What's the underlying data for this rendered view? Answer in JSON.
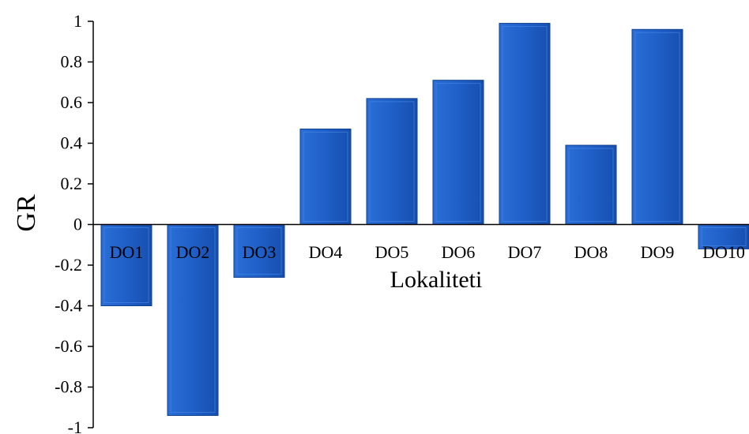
{
  "chart_data": {
    "type": "bar",
    "title": "",
    "xlabel": "Lokaliteti",
    "ylabel": "GR",
    "ylim": [
      -1,
      1
    ],
    "y_ticks": [
      -1,
      -0.8,
      -0.6,
      -0.4,
      -0.2,
      0,
      0.2,
      0.4,
      0.6,
      0.8,
      1
    ],
    "y_tick_labels": [
      "-1",
      "-0.8",
      "-0.6",
      "-0.4",
      "-0.2",
      "0",
      "0.2",
      "0.4",
      "0.6",
      "0.8",
      "1"
    ],
    "categories": [
      "DO1",
      "DO2",
      "DO3",
      "DO4",
      "DO5",
      "DO6",
      "DO7",
      "DO8",
      "DO9",
      "DO10"
    ],
    "values": [
      -0.4,
      -0.94,
      -0.26,
      0.47,
      0.62,
      0.71,
      0.99,
      0.39,
      0.96,
      -0.12
    ],
    "grid": false,
    "legend": "none",
    "bar_color": "#1f5fc8"
  }
}
